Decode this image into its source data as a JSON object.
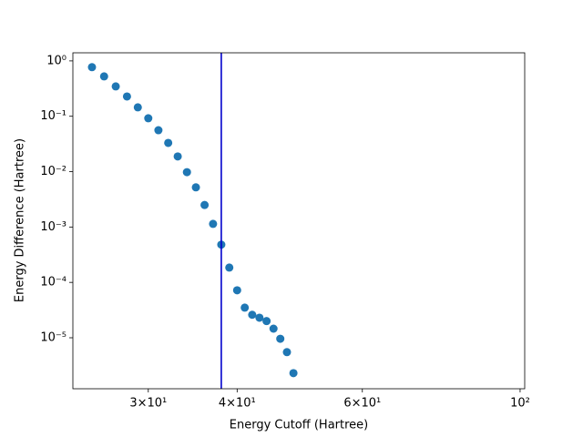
{
  "chart_data": {
    "type": "scatter",
    "xlabel": "Energy Cutoff (Hartree)",
    "ylabel": "Energy Difference (Hartree)",
    "xscale": "log",
    "yscale": "log",
    "x": [
      25,
      26,
      27,
      28,
      29,
      30,
      31,
      32,
      33,
      34,
      35,
      36,
      37,
      38,
      39,
      40,
      41,
      42,
      43,
      44,
      45,
      46,
      47,
      48
    ],
    "values": [
      0.77,
      0.525,
      0.346,
      0.228,
      0.145,
      0.092,
      0.056,
      0.033,
      0.0188,
      0.0098,
      0.0052,
      0.0025,
      0.00114,
      0.00048,
      0.000185,
      7.2e-05,
      3.5e-05,
      2.6e-05,
      2.3e-05,
      2e-05,
      1.46e-05,
      9.6e-06,
      5.5e-06,
      2.3e-06
    ],
    "color": "#1f77b4",
    "vlines": [
      {
        "value": 38,
        "color": "#0000cc"
      }
    ],
    "xlim": [
      23.5,
      101.5
    ],
    "ylim": [
      1.2e-06,
      1.4
    ],
    "xticks": [
      {
        "value": 30,
        "label": "3×10¹"
      },
      {
        "value": 40,
        "label": "4×10¹"
      },
      {
        "value": 60,
        "label": "6×10¹"
      },
      {
        "value": 100,
        "label": "10²"
      }
    ],
    "yticks": [
      {
        "value": 1,
        "label": "10⁰"
      },
      {
        "value": 0.1,
        "label": "10⁻¹"
      },
      {
        "value": 0.01,
        "label": "10⁻²"
      },
      {
        "value": 0.001,
        "label": "10⁻³"
      },
      {
        "value": 0.0001,
        "label": "10⁻⁴"
      },
      {
        "value": 1e-05,
        "label": "10⁻⁵"
      }
    ],
    "grid": false
  }
}
